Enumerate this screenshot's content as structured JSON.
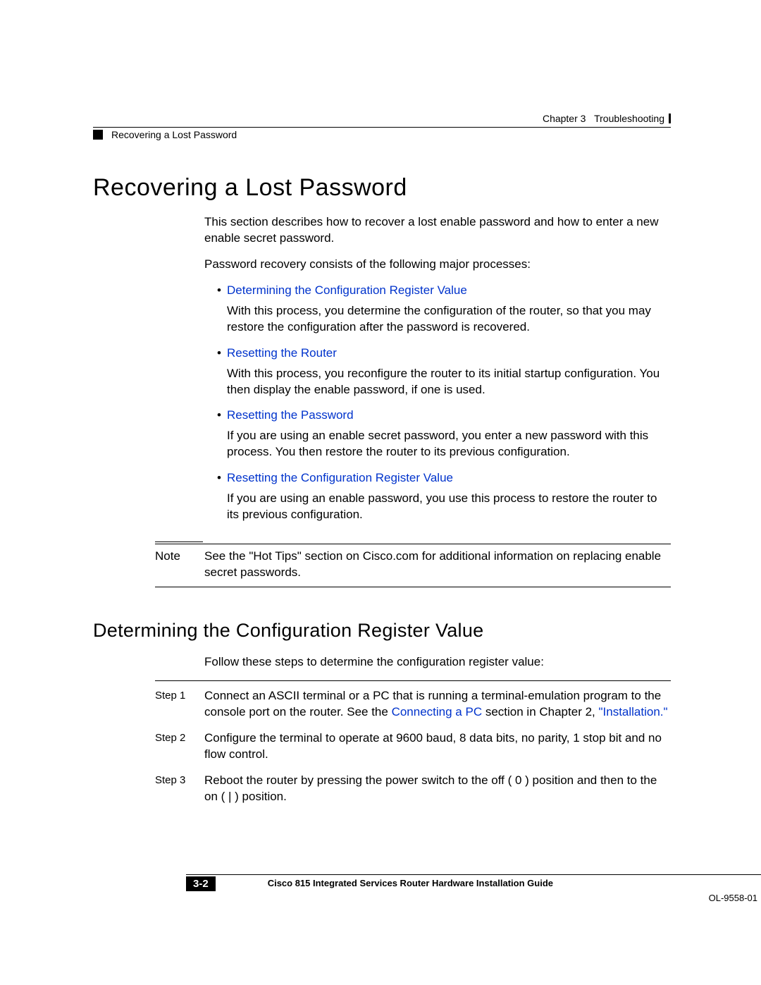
{
  "colors": {
    "link": "#0033cc",
    "text": "#000000",
    "background": "#ffffff"
  },
  "header": {
    "chapter": "Chapter 3",
    "title": "Troubleshooting",
    "breadcrumb": "Recovering a Lost Password"
  },
  "section": {
    "h1": "Recovering a Lost Password",
    "intro1": "This section describes how to recover a lost enable password and how to enter a new enable secret password.",
    "intro2": "Password recovery consists of the following major processes:",
    "bullets": [
      {
        "link": "Determining the Configuration Register Value",
        "desc": "With this process, you determine the configuration of the router, so that you may restore the configuration after the password is recovered."
      },
      {
        "link": "Resetting the Router",
        "desc": "With this process, you reconfigure the router to its initial startup configuration. You then display the enable password, if one is used."
      },
      {
        "link": "Resetting the Password",
        "desc": "If you are using an enable secret password, you enter a new password with this process. You then restore the router to its previous configuration."
      },
      {
        "link": "Resetting the Configuration Register Value",
        "desc": "If you are using an enable password, you use this process to restore the router to its previous configuration."
      }
    ],
    "note": {
      "label": "Note",
      "text": "See the \"Hot Tips\" section on Cisco.com for additional information on replacing enable secret passwords."
    }
  },
  "subsection": {
    "h2": "Determining the Configuration Register Value",
    "intro": "Follow these steps to determine the configuration register value:",
    "steps": [
      {
        "label": "Step 1",
        "pre": "Connect an ASCII terminal or a PC that is running a terminal-emulation program to the console port on the router. See the ",
        "link1": "Connecting a PC",
        "mid": " section in Chapter 2, ",
        "link2": "\"Installation.\"",
        "post": ""
      },
      {
        "label": "Step 2",
        "text": "Configure the terminal to operate at 9600 baud, 8 data bits, no parity, 1 stop bit and no flow control."
      },
      {
        "label": "Step 3",
        "text": "Reboot the router by pressing the power switch to the off ( 0 ) position and then to the on ( | ) position."
      }
    ]
  },
  "footer": {
    "guide": "Cisco 815 Integrated Services Router Hardware Installation Guide",
    "page": "3-2",
    "doc": "OL-9558-01"
  }
}
